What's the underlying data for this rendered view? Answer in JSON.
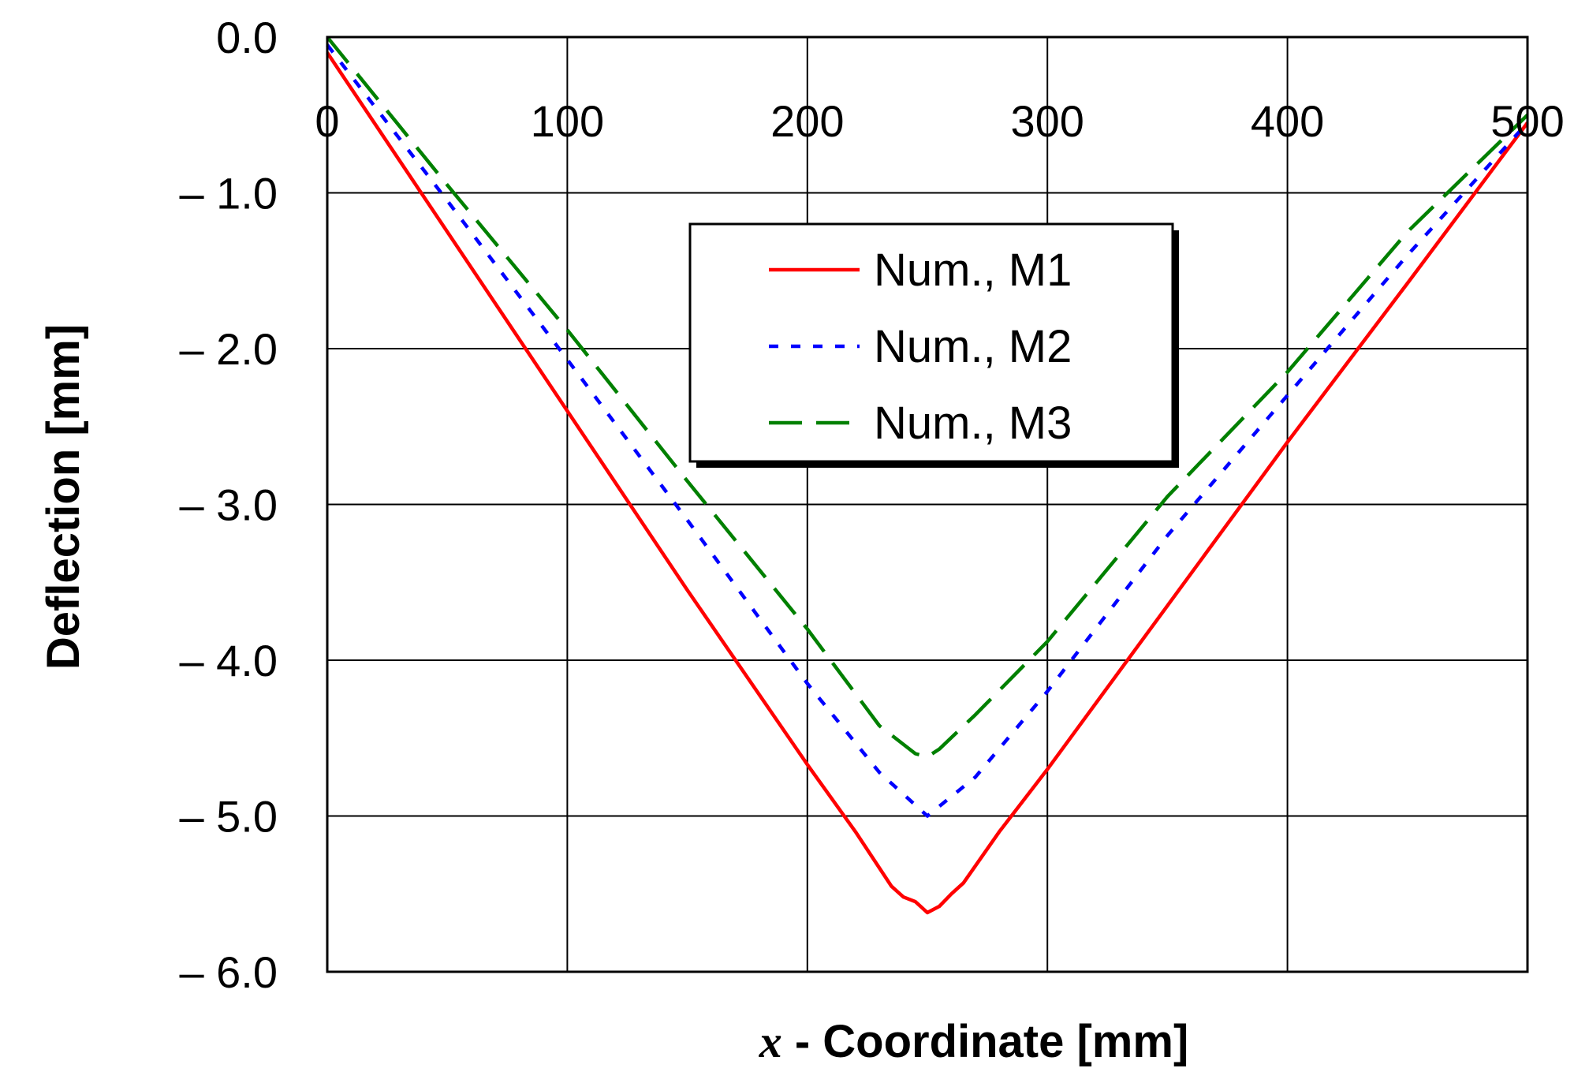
{
  "chart_data": {
    "type": "line",
    "title": "",
    "xlabel_var": "x",
    "xlabel_rest": " - Coordinate [mm]",
    "ylabel": "Deflection [mm]",
    "xlim": [
      0,
      500
    ],
    "ylim": [
      -6.0,
      0.0
    ],
    "x_ticks": [
      0,
      100,
      200,
      300,
      400,
      500
    ],
    "x_tick_labels": [
      "0",
      "100",
      "200",
      "300",
      "400",
      "500"
    ],
    "y_ticks": [
      0,
      -1,
      -2,
      -3,
      -4,
      -5,
      -6
    ],
    "y_tick_labels": [
      "0.0",
      "– 1.0",
      "– 2.0",
      "– 3.0",
      "– 4.0",
      "– 5.0",
      "– 6.0"
    ],
    "grid": true,
    "legend_position": "upper-center",
    "series": [
      {
        "name": "Num., M1",
        "color": "#ff0000",
        "style": "solid",
        "x": [
          0,
          50,
          100,
          150,
          200,
          220,
          235,
          240,
          245,
          250,
          255,
          260,
          265,
          280,
          300,
          350,
          400,
          450,
          500
        ],
        "y": [
          -0.1,
          -1.25,
          -2.4,
          -3.55,
          -4.67,
          -5.1,
          -5.45,
          -5.52,
          -5.55,
          -5.62,
          -5.58,
          -5.5,
          -5.43,
          -5.1,
          -4.7,
          -3.65,
          -2.6,
          -1.58,
          -0.55
        ]
      },
      {
        "name": "Num., M2",
        "color": "#0000ff",
        "style": "dotted",
        "x": [
          0,
          50,
          100,
          150,
          200,
          230,
          250,
          270,
          300,
          350,
          400,
          450,
          500
        ],
        "y": [
          -0.05,
          -1.05,
          -2.07,
          -3.1,
          -4.15,
          -4.72,
          -5.0,
          -4.75,
          -4.2,
          -3.2,
          -2.3,
          -1.4,
          -0.55
        ]
      },
      {
        "name": "Num., M3",
        "color": "#008000",
        "style": "dashed",
        "x": [
          0,
          50,
          100,
          150,
          200,
          230,
          245,
          250,
          255,
          270,
          300,
          350,
          400,
          450,
          500
        ],
        "y": [
          0.0,
          -0.95,
          -1.88,
          -2.85,
          -3.8,
          -4.42,
          -4.6,
          -4.62,
          -4.57,
          -4.35,
          -3.88,
          -2.95,
          -2.15,
          -1.25,
          -0.5
        ]
      }
    ]
  }
}
